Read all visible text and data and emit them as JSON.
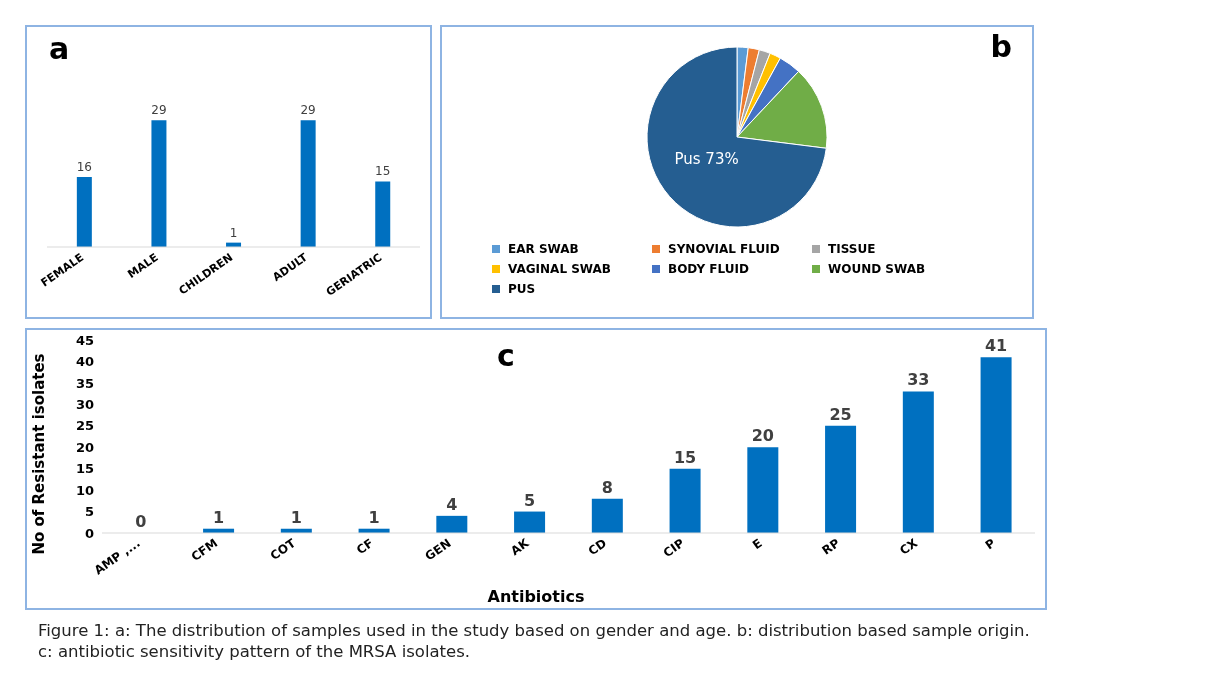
{
  "chart_data": [
    {
      "type": "bar",
      "title": "a",
      "categories": [
        "FEMALE",
        "MALE",
        "CHILDREN",
        "ADULT",
        "GERIATRIC"
      ],
      "values": [
        16,
        29,
        1,
        29,
        15
      ],
      "color": "#0070c0",
      "data_labels": true
    },
    {
      "type": "pie",
      "title": "b",
      "categories": [
        "EAR SWAB",
        "SYNOVIAL FLUID",
        "TISSUE",
        "VAGINAL SWAB",
        "BODY FLUID",
        "WOUND SWAB",
        "PUS"
      ],
      "values": [
        2,
        2,
        2,
        2,
        4,
        15,
        73
      ],
      "colors": [
        "#5b9bd5",
        "#ed7d31",
        "#a5a5a5",
        "#ffc000",
        "#4472c4",
        "#70ad47",
        "#255e91"
      ],
      "value_labels": [
        null,
        null,
        null,
        null,
        null,
        null,
        "Pus 73%"
      ],
      "legend": "bottom"
    },
    {
      "type": "bar",
      "title": "c",
      "xlabel": "Antibiotics",
      "ylabel": "No of Resistant isolates",
      "categories": [
        "AMP ,...",
        "CFM",
        "COT",
        "CF",
        "GEN",
        "AK",
        "CD",
        "CIP",
        "E",
        "RP",
        "CX",
        "P"
      ],
      "values": [
        0,
        1,
        1,
        1,
        4,
        5,
        8,
        15,
        20,
        25,
        33,
        41
      ],
      "color": "#0070c0",
      "ylim": [
        0,
        45
      ],
      "yticks": [
        0,
        5,
        10,
        15,
        20,
        25,
        30,
        35,
        40,
        45
      ],
      "data_labels": true,
      "annotations": [
        "Figure 1: a: The distribution of samples used in the study based on gender and age. b: distribution based sample origin. c: antibiotic sensitivity pattern of the MRSA isolates."
      ]
    }
  ]
}
